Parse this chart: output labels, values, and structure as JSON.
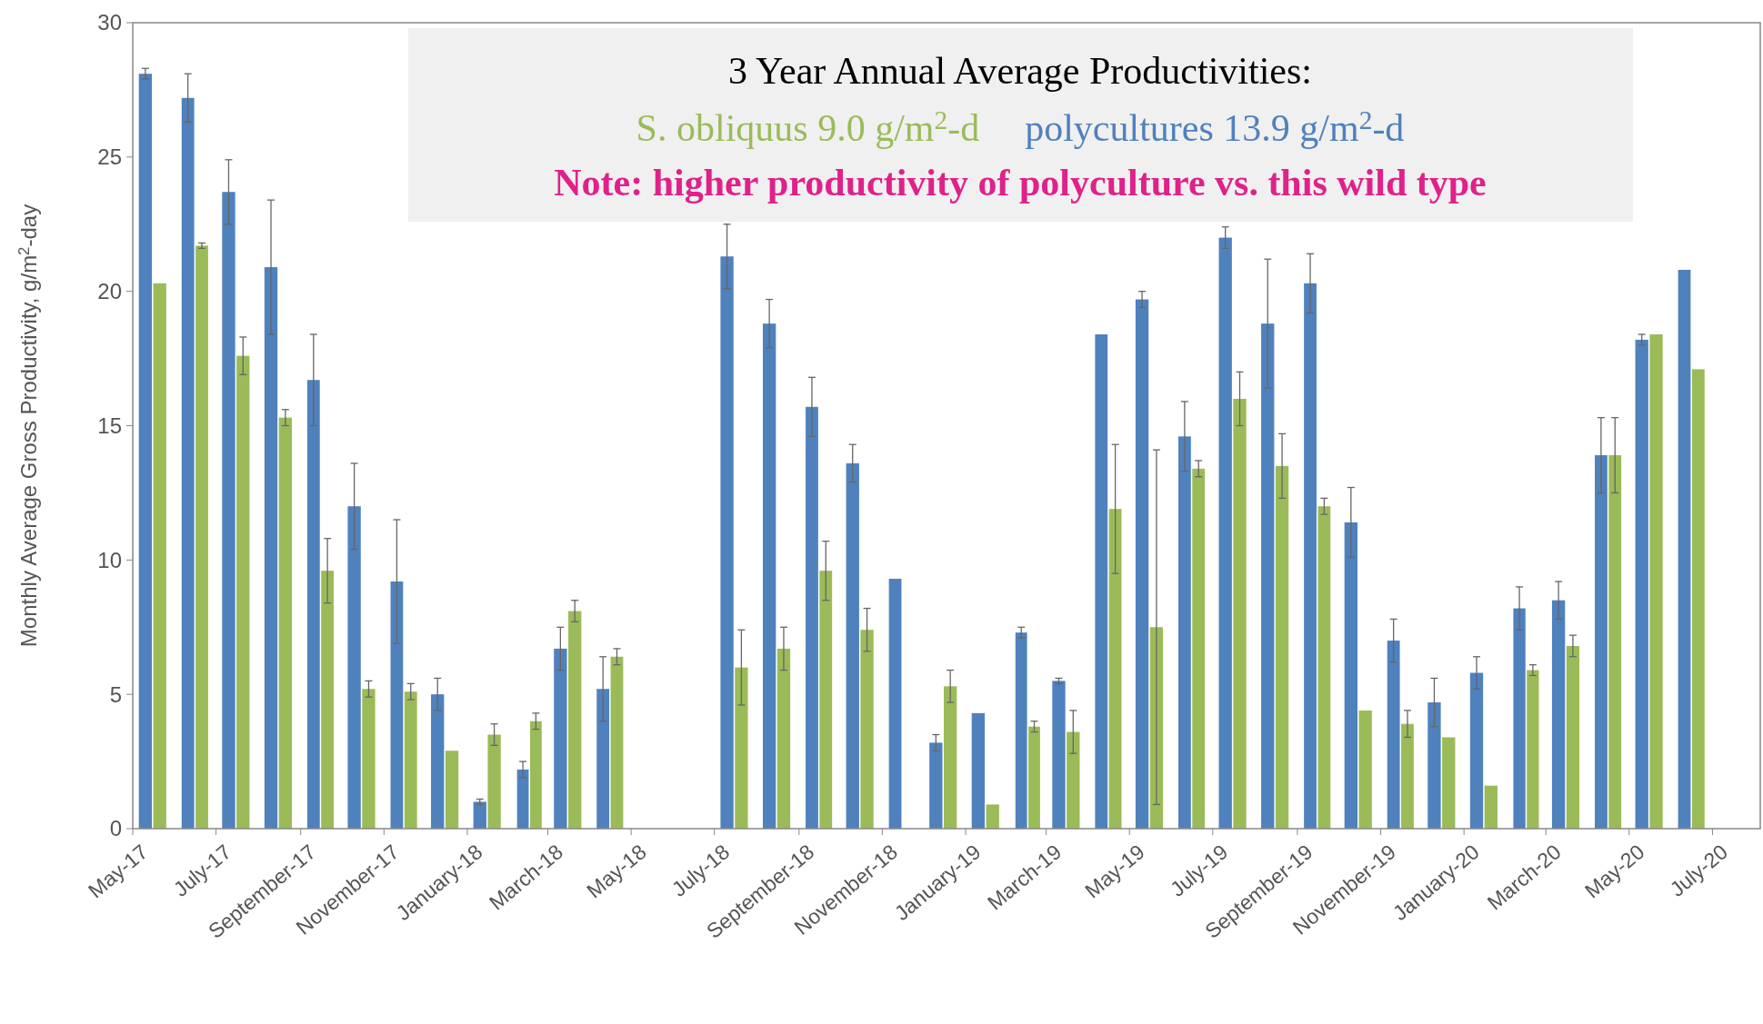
{
  "chart_data": {
    "type": "bar",
    "title": "3 Year Annual Average Productivities:",
    "ylabel": "Monthly Average Gross Productivity, g/m$^{2}$-day",
    "annotations": [
      "S. obliquus 9.0 g/m$^{2}$-d",
      "polycultures 13.9 g/m$^{2}$-d",
      "Note: higher productivity of polyculture vs. this wild type"
    ],
    "x": [
      "2017-05-16",
      "2017-06-16",
      "2017-07-16",
      "2017-08-16",
      "2017-09-16",
      "2017-10-16",
      "2017-11-16",
      "2017-12-16",
      "2018-01-16",
      "2018-02-16",
      "2018-03-16",
      "2018-04-16",
      "2018-07-16",
      "2018-08-16",
      "2018-09-16",
      "2018-10-16",
      "2018-11-16",
      "2018-12-16",
      "2019-01-16",
      "2019-02-16",
      "2019-03-16",
      "2019-04-16",
      "2019-05-16",
      "2019-06-16",
      "2019-07-16",
      "2019-08-16",
      "2019-09-16",
      "2019-10-16",
      "2019-11-16",
      "2019-12-16",
      "2020-01-16",
      "2020-02-16",
      "2020-03-16",
      "2020-04-16",
      "2020-05-16",
      "2020-06-16"
    ],
    "series": [
      {
        "color": "#4f81bd",
        "values": [
          28.1,
          27.2,
          23.7,
          20.9,
          16.7,
          12.0,
          9.2,
          5.0,
          1.0,
          2.2,
          6.7,
          5.2,
          21.3,
          18.8,
          15.7,
          13.6,
          9.3,
          3.2,
          4.3,
          7.3,
          5.5,
          18.4,
          19.7,
          14.6,
          22.0,
          18.8,
          20.3,
          11.4,
          7.0,
          4.7,
          5.8,
          8.2,
          8.5,
          13.9,
          18.2,
          20.8
        ],
        "errors": [
          0.2,
          0.9,
          1.2,
          2.5,
          1.7,
          1.6,
          2.3,
          0.6,
          0.1,
          0.3,
          0.8,
          1.2,
          1.2,
          0.9,
          1.1,
          0.7,
          null,
          0.3,
          null,
          0.2,
          0.1,
          null,
          0.3,
          1.3,
          0.4,
          2.4,
          1.1,
          1.3,
          0.8,
          0.9,
          0.6,
          0.8,
          0.7,
          1.4,
          0.2,
          null
        ]
      },
      {
        "color": "#9bbb59",
        "values": [
          20.3,
          21.7,
          17.6,
          15.3,
          9.6,
          5.2,
          5.1,
          2.9,
          3.5,
          4.0,
          8.1,
          6.4,
          6.0,
          6.7,
          9.6,
          7.4,
          null,
          5.3,
          0.9,
          3.8,
          3.6,
          11.9,
          7.5,
          13.4,
          16.0,
          13.5,
          12.0,
          4.4,
          3.9,
          3.4,
          1.6,
          5.9,
          6.8,
          13.9,
          18.4,
          17.1
        ],
        "errors": [
          null,
          0.1,
          0.7,
          0.3,
          1.2,
          0.3,
          0.3,
          null,
          0.4,
          0.3,
          0.4,
          0.3,
          1.4,
          0.8,
          1.1,
          0.8,
          null,
          0.6,
          null,
          0.2,
          0.8,
          2.4,
          6.6,
          0.3,
          1.0,
          1.2,
          0.3,
          null,
          0.5,
          null,
          null,
          0.2,
          0.4,
          1.4,
          null,
          null
        ]
      }
    ],
    "xlim": [
      "2017-05",
      "2020-08-05"
    ],
    "xticks": [
      {
        "value": "2017-05",
        "label": "May-17"
      },
      {
        "value": "2017-07",
        "label": "July-17"
      },
      {
        "value": "2017-09",
        "label": "September-17"
      },
      {
        "value": "2017-11",
        "label": "November-17"
      },
      {
        "value": "2018-01",
        "label": "January-18"
      },
      {
        "value": "2018-03",
        "label": "March-18"
      },
      {
        "value": "2018-05",
        "label": "May-18"
      },
      {
        "value": "2018-07",
        "label": "July-18"
      },
      {
        "value": "2018-09",
        "label": "September-18"
      },
      {
        "value": "2018-11",
        "label": "November-18"
      },
      {
        "value": "2019-01",
        "label": "January-19"
      },
      {
        "value": "2019-03",
        "label": "March-19"
      },
      {
        "value": "2019-05",
        "label": "May-19"
      },
      {
        "value": "2019-07",
        "label": "July-19"
      },
      {
        "value": "2019-09",
        "label": "September-19"
      },
      {
        "value": "2019-11",
        "label": "November-19"
      },
      {
        "value": "2020-01",
        "label": "January-20"
      },
      {
        "value": "2020-03",
        "label": "March-20"
      },
      {
        "value": "2020-05",
        "label": "May-20"
      },
      {
        "value": "2020-07",
        "label": "July-20"
      }
    ],
    "ylim": [
      0,
      30
    ],
    "yticks": [
      0,
      5,
      10,
      15,
      20,
      25,
      30
    ],
    "grid": false
  }
}
